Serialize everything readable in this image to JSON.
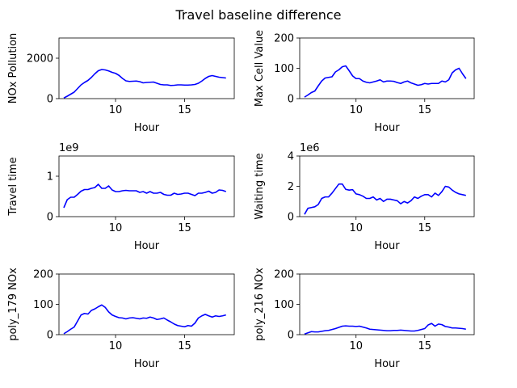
{
  "figure": {
    "title": "Travel baseline difference"
  },
  "chart_data": [
    {
      "type": "line",
      "xlabel": "Hour",
      "ylabel": "NOx Pollution",
      "xlim": [
        5.9,
        18.6
      ],
      "ylim": [
        0,
        3000
      ],
      "xticks": [
        10,
        15
      ],
      "yticks": [
        0,
        2000
      ],
      "offset_text": "",
      "grid": false,
      "series": [
        {
          "color": "#0000ff",
          "x": [
            6.25,
            6.5,
            6.75,
            7,
            7.25,
            7.5,
            7.75,
            8,
            8.25,
            8.5,
            8.75,
            9,
            9.25,
            9.5,
            9.75,
            10,
            10.25,
            10.5,
            10.75,
            11,
            11.25,
            11.5,
            11.75,
            12,
            12.25,
            12.5,
            12.75,
            13,
            13.25,
            13.5,
            13.75,
            14,
            14.25,
            14.5,
            14.75,
            15,
            15.25,
            15.5,
            15.75,
            16,
            16.25,
            16.5,
            16.75,
            17,
            17.25,
            17.5,
            17.75,
            18
          ],
          "y": [
            30,
            120,
            220,
            320,
            500,
            680,
            800,
            900,
            1050,
            1230,
            1380,
            1440,
            1420,
            1370,
            1300,
            1250,
            1150,
            1000,
            880,
            850,
            860,
            870,
            840,
            780,
            800,
            810,
            820,
            760,
            700,
            680,
            680,
            650,
            660,
            680,
            680,
            670,
            670,
            680,
            700,
            760,
            870,
            1000,
            1100,
            1140,
            1100,
            1060,
            1040,
            1020
          ]
        }
      ]
    },
    {
      "type": "line",
      "xlabel": "Hour",
      "ylabel": "Max Cell Value",
      "xlim": [
        5.9,
        18.6
      ],
      "ylim": [
        0,
        200
      ],
      "xticks": [
        10,
        15
      ],
      "yticks": [
        0,
        100,
        200
      ],
      "offset_text": "",
      "grid": false,
      "series": [
        {
          "color": "#0000ff",
          "x": [
            6.25,
            6.5,
            6.75,
            7,
            7.25,
            7.5,
            7.75,
            8,
            8.25,
            8.5,
            8.75,
            9,
            9.25,
            9.5,
            9.75,
            10,
            10.25,
            10.5,
            10.75,
            11,
            11.25,
            11.5,
            11.75,
            12,
            12.25,
            12.5,
            12.75,
            13,
            13.25,
            13.5,
            13.75,
            14,
            14.25,
            14.5,
            14.75,
            15,
            15.25,
            15.5,
            15.75,
            16,
            16.25,
            16.5,
            16.75,
            17,
            17.25,
            17.5,
            17.75,
            18
          ],
          "y": [
            5,
            12,
            20,
            25,
            42,
            58,
            68,
            70,
            72,
            88,
            95,
            105,
            108,
            92,
            75,
            66,
            66,
            58,
            54,
            52,
            55,
            58,
            62,
            55,
            58,
            58,
            57,
            53,
            50,
            55,
            58,
            52,
            48,
            44,
            46,
            50,
            48,
            50,
            50,
            50,
            58,
            55,
            62,
            85,
            95,
            100,
            82,
            66
          ]
        }
      ]
    },
    {
      "type": "line",
      "xlabel": "",
      "ylabel": "Travel time",
      "xlim": [
        5.9,
        18.6
      ],
      "ylim": [
        0,
        1.5
      ],
      "xticks": [
        10,
        15
      ],
      "yticks": [
        0,
        1
      ],
      "offset_text": "1e9",
      "grid": false,
      "series": [
        {
          "color": "#0000ff",
          "x": [
            6.25,
            6.5,
            6.75,
            7,
            7.25,
            7.5,
            7.75,
            8,
            8.25,
            8.5,
            8.75,
            9,
            9.25,
            9.5,
            9.75,
            10,
            10.25,
            10.5,
            10.75,
            11,
            11.25,
            11.5,
            11.75,
            12,
            12.25,
            12.5,
            12.75,
            13,
            13.25,
            13.5,
            13.75,
            14,
            14.25,
            14.5,
            14.75,
            15,
            15.25,
            15.5,
            15.75,
            16,
            16.25,
            16.5,
            16.75,
            17,
            17.25,
            17.5,
            17.75,
            18
          ],
          "y": [
            0.22,
            0.42,
            0.48,
            0.48,
            0.55,
            0.63,
            0.67,
            0.67,
            0.7,
            0.72,
            0.8,
            0.7,
            0.7,
            0.76,
            0.66,
            0.62,
            0.62,
            0.64,
            0.65,
            0.64,
            0.64,
            0.64,
            0.6,
            0.62,
            0.58,
            0.62,
            0.58,
            0.58,
            0.6,
            0.55,
            0.53,
            0.53,
            0.58,
            0.55,
            0.56,
            0.58,
            0.58,
            0.55,
            0.52,
            0.58,
            0.58,
            0.6,
            0.63,
            0.58,
            0.6,
            0.66,
            0.65,
            0.62
          ]
        }
      ]
    },
    {
      "type": "line",
      "xlabel": "",
      "ylabel": "Waiting time",
      "xlim": [
        5.9,
        18.6
      ],
      "ylim": [
        0,
        4
      ],
      "xticks": [
        10,
        15
      ],
      "yticks": [
        0,
        2,
        4
      ],
      "offset_text": "1e6",
      "grid": false,
      "series": [
        {
          "color": "#0000ff",
          "x": [
            6.25,
            6.5,
            6.75,
            7,
            7.25,
            7.5,
            7.75,
            8,
            8.25,
            8.5,
            8.75,
            9,
            9.25,
            9.5,
            9.75,
            10,
            10.25,
            10.5,
            10.75,
            11,
            11.25,
            11.5,
            11.75,
            12,
            12.25,
            12.5,
            12.75,
            13,
            13.25,
            13.5,
            13.75,
            14,
            14.25,
            14.5,
            14.75,
            15,
            15.25,
            15.5,
            15.75,
            16,
            16.25,
            16.5,
            16.75,
            17,
            17.25,
            17.5,
            17.75,
            18
          ],
          "y": [
            0.15,
            0.55,
            0.6,
            0.65,
            0.8,
            1.2,
            1.3,
            1.3,
            1.55,
            1.85,
            2.15,
            2.15,
            1.8,
            1.75,
            1.78,
            1.5,
            1.45,
            1.35,
            1.2,
            1.2,
            1.3,
            1.1,
            1.2,
            1.0,
            1.15,
            1.15,
            1.1,
            1.05,
            0.85,
            1.0,
            0.9,
            1.05,
            1.3,
            1.2,
            1.35,
            1.45,
            1.45,
            1.3,
            1.55,
            1.4,
            1.65,
            2.0,
            1.95,
            1.75,
            1.6,
            1.5,
            1.45,
            1.4
          ]
        }
      ]
    },
    {
      "type": "line",
      "xlabel": "Hour",
      "ylabel": "poly_179 NOx",
      "xlim": [
        5.9,
        18.6
      ],
      "ylim": [
        0,
        200
      ],
      "xticks": [
        10,
        15
      ],
      "yticks": [
        0,
        100,
        200
      ],
      "offset_text": "",
      "grid": false,
      "series": [
        {
          "color": "#0000ff",
          "x": [
            6.25,
            6.5,
            6.75,
            7,
            7.25,
            7.5,
            7.75,
            8,
            8.25,
            8.5,
            8.75,
            9,
            9.25,
            9.5,
            9.75,
            10,
            10.25,
            10.5,
            10.75,
            11,
            11.25,
            11.5,
            11.75,
            12,
            12.25,
            12.5,
            12.75,
            13,
            13.25,
            13.5,
            13.75,
            14,
            14.25,
            14.5,
            14.75,
            15,
            15.25,
            15.5,
            15.75,
            16,
            16.25,
            16.5,
            16.75,
            17,
            17.25,
            17.5,
            17.75,
            18
          ],
          "y": [
            3,
            10,
            18,
            25,
            45,
            65,
            70,
            68,
            80,
            85,
            92,
            98,
            90,
            75,
            65,
            60,
            56,
            55,
            52,
            55,
            56,
            54,
            52,
            55,
            54,
            58,
            55,
            50,
            52,
            55,
            48,
            42,
            35,
            30,
            28,
            26,
            30,
            28,
            38,
            55,
            62,
            67,
            62,
            58,
            62,
            60,
            62,
            65
          ]
        }
      ]
    },
    {
      "type": "line",
      "xlabel": "Hour",
      "ylabel": "poly_216 NOx",
      "xlim": [
        5.9,
        18.6
      ],
      "ylim": [
        0,
        200
      ],
      "xticks": [
        10,
        15
      ],
      "yticks": [
        0,
        100,
        200
      ],
      "offset_text": "",
      "grid": false,
      "series": [
        {
          "color": "#0000ff",
          "x": [
            6.25,
            6.5,
            6.75,
            7,
            7.25,
            7.5,
            7.75,
            8,
            8.25,
            8.5,
            8.75,
            9,
            9.25,
            9.5,
            9.75,
            10,
            10.25,
            10.5,
            10.75,
            11,
            11.25,
            11.5,
            11.75,
            12,
            12.25,
            12.5,
            12.75,
            13,
            13.25,
            13.5,
            13.75,
            14,
            14.25,
            14.5,
            14.75,
            15,
            15.25,
            15.5,
            15.75,
            16,
            16.25,
            16.5,
            16.75,
            17,
            17.25,
            17.5,
            17.75,
            18
          ],
          "y": [
            2,
            6,
            10,
            9,
            9,
            11,
            13,
            14,
            17,
            20,
            24,
            28,
            29,
            28,
            28,
            27,
            28,
            25,
            22,
            18,
            17,
            16,
            15,
            14,
            13,
            13,
            14,
            14,
            15,
            14,
            13,
            12,
            12,
            14,
            17,
            20,
            32,
            37,
            28,
            35,
            33,
            27,
            25,
            22,
            22,
            21,
            20,
            18
          ]
        }
      ]
    }
  ]
}
